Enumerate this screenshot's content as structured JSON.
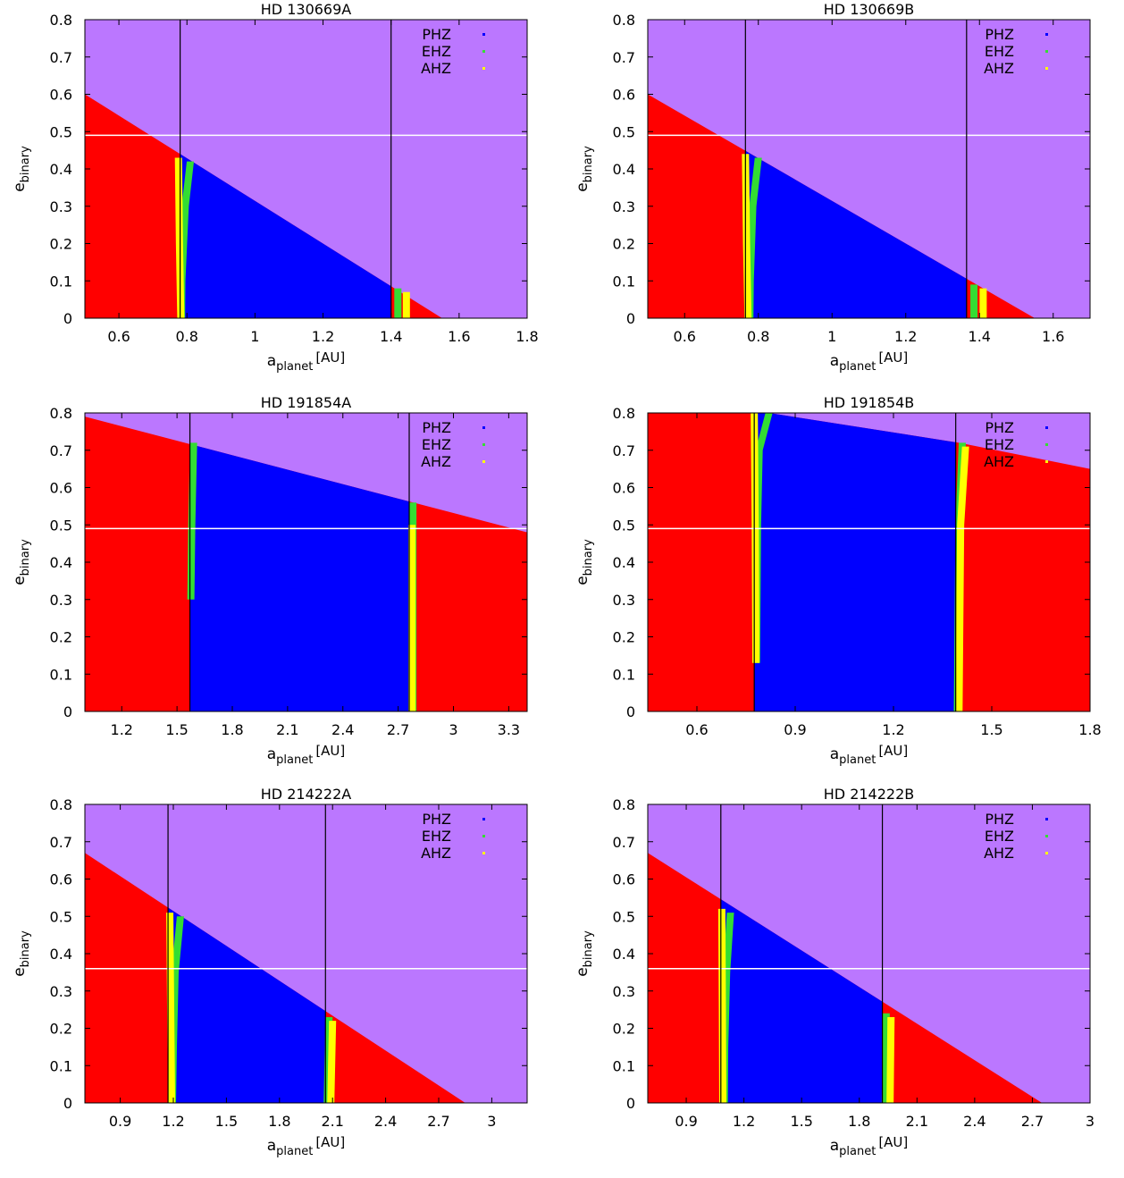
{
  "colors": {
    "background": "#bb77ff",
    "unstable": "#ff0000",
    "phz": "#0000ff",
    "ehz": "#33dd33",
    "ahz": "#ffff00",
    "white_line": "#ffffff",
    "black_line": "#000000"
  },
  "legend": [
    "PHZ",
    "EHZ",
    "AHZ"
  ],
  "chart_data": [
    {
      "type": "area",
      "title": "HD 130669A",
      "xlabel_main": "a",
      "xlabel_sub": "planet",
      "xlabel_unit": "[AU]",
      "ylabel_main": "e",
      "ylabel_sub": "binary",
      "xlim": [
        0.5,
        1.8
      ],
      "ylim": [
        0,
        0.8
      ],
      "xticks": [
        0.6,
        0.8,
        1,
        1.2,
        1.4,
        1.6,
        1.8
      ],
      "xtick_labels": [
        "0.6",
        "0.8",
        "1",
        "1.2",
        "1.4",
        "1.6",
        "1.8"
      ],
      "yticks": [
        0,
        0.1,
        0.2,
        0.3,
        0.4,
        0.5,
        0.6,
        0.7,
        0.8
      ],
      "ytick_labels": [
        "0",
        "0.1",
        "0.2",
        "0.3",
        "0.4",
        "0.5",
        "0.6",
        "0.7",
        "0.8"
      ],
      "boundary": [
        [
          0.5,
          0.6
        ],
        [
          1.55,
          0
        ]
      ],
      "hz_inner": 0.78,
      "hz_outer": 1.4,
      "white_line": 0.49,
      "inner_edge": {
        "ahz": [
          [
            0.775,
            0.43
          ],
          [
            0.778,
            0.2
          ],
          [
            0.782,
            0
          ]
        ],
        "ehz": [
          [
            0.81,
            0.42
          ],
          [
            0.795,
            0.3
          ],
          [
            0.785,
            0.1
          ],
          [
            0.784,
            0
          ]
        ]
      },
      "outer_edge": {
        "ehz": [
          [
            1.42,
            0.08
          ],
          [
            1.42,
            0
          ]
        ],
        "ahz": [
          [
            1.445,
            0.07
          ],
          [
            1.445,
            0
          ]
        ]
      },
      "legend_pos": "top-right"
    },
    {
      "type": "area",
      "title": "HD 130669B",
      "xlabel_main": "a",
      "xlabel_sub": "planet",
      "xlabel_unit": "[AU]",
      "ylabel_main": "e",
      "ylabel_sub": "binary",
      "xlim": [
        0.5,
        1.7
      ],
      "ylim": [
        0,
        0.8
      ],
      "xticks": [
        0.6,
        0.8,
        1,
        1.2,
        1.4,
        1.6
      ],
      "xtick_labels": [
        "0.6",
        "0.8",
        "1",
        "1.2",
        "1.4",
        "1.6"
      ],
      "yticks": [
        0,
        0.1,
        0.2,
        0.3,
        0.4,
        0.5,
        0.6,
        0.7,
        0.8
      ],
      "ytick_labels": [
        "0",
        "0.1",
        "0.2",
        "0.3",
        "0.4",
        "0.5",
        "0.6",
        "0.7",
        "0.8"
      ],
      "boundary": [
        [
          0.5,
          0.6
        ],
        [
          1.55,
          0
        ]
      ],
      "hz_inner": 0.765,
      "hz_outer": 1.365,
      "white_line": 0.49,
      "inner_edge": {
        "ahz": [
          [
            0.765,
            0.44
          ],
          [
            0.768,
            0.2
          ],
          [
            0.772,
            0
          ]
        ],
        "ehz": [
          [
            0.8,
            0.43
          ],
          [
            0.785,
            0.3
          ],
          [
            0.778,
            0.1
          ],
          [
            0.777,
            0
          ]
        ]
      },
      "outer_edge": {
        "ehz": [
          [
            1.385,
            0.09
          ],
          [
            1.385,
            0
          ]
        ],
        "ahz": [
          [
            1.41,
            0.08
          ],
          [
            1.41,
            0
          ]
        ]
      },
      "legend_pos": "top-right"
    },
    {
      "type": "area",
      "title": "HD 191854A",
      "xlabel_main": "a",
      "xlabel_sub": "planet",
      "xlabel_unit": "[AU]",
      "ylabel_main": "e",
      "ylabel_sub": "binary",
      "xlim": [
        1.0,
        3.4
      ],
      "ylim": [
        0,
        0.8
      ],
      "xticks": [
        1.2,
        1.5,
        1.8,
        2.1,
        2.4,
        2.7,
        3,
        3.3
      ],
      "xtick_labels": [
        "1.2",
        "1.5",
        "1.8",
        "2.1",
        "2.4",
        "2.7",
        "3",
        "3.3"
      ],
      "yticks": [
        0,
        0.1,
        0.2,
        0.3,
        0.4,
        0.5,
        0.6,
        0.7,
        0.8
      ],
      "ytick_labels": [
        "0",
        "0.1",
        "0.2",
        "0.3",
        "0.4",
        "0.5",
        "0.6",
        "0.7",
        "0.8"
      ],
      "boundary": [
        [
          1.0,
          0.79
        ],
        [
          3.4,
          0.48
        ]
      ],
      "hz_inner": 1.57,
      "hz_outer": 2.76,
      "white_line": 0.49,
      "inner_edge": {
        "ehz": [
          [
            1.59,
            0.72
          ],
          [
            1.58,
            0.5
          ],
          [
            1.575,
            0.3
          ]
        ]
      },
      "outer_edge": {
        "ehz": [
          [
            2.78,
            0.56
          ],
          [
            2.78,
            0.0
          ]
        ],
        "ahz": [
          [
            2.775,
            0.5
          ],
          [
            2.775,
            0.0
          ]
        ]
      },
      "legend_pos": "top-right"
    },
    {
      "type": "area",
      "title": "HD 191854B",
      "xlabel_main": "a",
      "xlabel_sub": "planet",
      "xlabel_unit": "[AU]",
      "ylabel_main": "e",
      "ylabel_sub": "binary",
      "xlim": [
        0.45,
        1.8
      ],
      "ylim": [
        0,
        0.8
      ],
      "xticks": [
        0.6,
        0.9,
        1.2,
        1.5,
        1.8
      ],
      "xtick_labels": [
        "0.6",
        "0.9",
        "1.2",
        "1.5",
        "1.8"
      ],
      "yticks": [
        0,
        0.1,
        0.2,
        0.3,
        0.4,
        0.5,
        0.6,
        0.7,
        0.8
      ],
      "ytick_labels": [
        "0",
        "0.1",
        "0.2",
        "0.3",
        "0.4",
        "0.5",
        "0.6",
        "0.7",
        "0.8"
      ],
      "boundary": [
        [
          0.45,
          0.8
        ],
        [
          0.82,
          0.8
        ],
        [
          1.4,
          0.72
        ],
        [
          1.8,
          0.65
        ]
      ],
      "region": "blue_between",
      "hz_inner": 0.775,
      "hz_outer": 1.39,
      "white_line": 0.49,
      "inner_edge": {
        "ehz": [
          [
            0.82,
            0.8
          ],
          [
            0.79,
            0.7
          ],
          [
            0.785,
            0.5
          ],
          [
            0.782,
            0.13
          ]
        ],
        "ahz": [
          [
            0.775,
            0.8
          ],
          [
            0.778,
            0.5
          ],
          [
            0.78,
            0.13
          ]
        ]
      },
      "outer_edge": {
        "ehz": [
          [
            1.41,
            0.72
          ],
          [
            1.4,
            0.5
          ],
          [
            1.395,
            0.0
          ]
        ],
        "ahz": [
          [
            1.42,
            0.71
          ],
          [
            1.405,
            0.5
          ],
          [
            1.4,
            0.0
          ]
        ]
      },
      "legend_pos": "top-right"
    },
    {
      "type": "area",
      "title": "HD 214222A",
      "xlabel_main": "a",
      "xlabel_sub": "planet",
      "xlabel_unit": "[AU]",
      "ylabel_main": "e",
      "ylabel_sub": "binary",
      "xlim": [
        0.7,
        3.2
      ],
      "ylim": [
        0,
        0.8
      ],
      "xticks": [
        0.9,
        1.2,
        1.5,
        1.8,
        2.1,
        2.4,
        2.7,
        3
      ],
      "xtick_labels": [
        "0.9",
        "1.2",
        "1.5",
        "1.8",
        "2.1",
        "2.4",
        "2.7",
        "3"
      ],
      "yticks": [
        0,
        0.1,
        0.2,
        0.3,
        0.4,
        0.5,
        0.6,
        0.7,
        0.8
      ],
      "ytick_labels": [
        "0",
        "0.1",
        "0.2",
        "0.3",
        "0.4",
        "0.5",
        "0.6",
        "0.7",
        "0.8"
      ],
      "boundary": [
        [
          0.7,
          0.67
        ],
        [
          2.85,
          0
        ]
      ],
      "hz_inner": 1.17,
      "hz_outer": 2.06,
      "white_line": 0.36,
      "inner_edge": {
        "ahz": [
          [
            1.18,
            0.51
          ],
          [
            1.185,
            0.25
          ],
          [
            1.19,
            0
          ]
        ],
        "ehz": [
          [
            1.24,
            0.5
          ],
          [
            1.21,
            0.35
          ],
          [
            1.2,
            0.15
          ],
          [
            1.195,
            0
          ]
        ]
      },
      "outer_edge": {
        "ehz": [
          [
            2.08,
            0.23
          ],
          [
            2.07,
            0
          ]
        ],
        "ahz": [
          [
            2.1,
            0.22
          ],
          [
            2.09,
            0
          ]
        ]
      },
      "legend_pos": "top-right"
    },
    {
      "type": "area",
      "title": "HD 214222B",
      "xlabel_main": "a",
      "xlabel_sub": "planet",
      "xlabel_unit": "[AU]",
      "ylabel_main": "e",
      "ylabel_sub": "binary",
      "xlim": [
        0.7,
        3.0
      ],
      "ylim": [
        0,
        0.8
      ],
      "xticks": [
        0.9,
        1.2,
        1.5,
        1.8,
        2.1,
        2.4,
        2.7,
        3
      ],
      "xtick_labels": [
        "0.9",
        "1.2",
        "1.5",
        "1.8",
        "2.1",
        "2.4",
        "2.7",
        "3"
      ],
      "yticks": [
        0,
        0.1,
        0.2,
        0.3,
        0.4,
        0.5,
        0.6,
        0.7,
        0.8
      ],
      "ytick_labels": [
        "0",
        "0.1",
        "0.2",
        "0.3",
        "0.4",
        "0.5",
        "0.6",
        "0.7",
        "0.8"
      ],
      "boundary": [
        [
          0.7,
          0.67
        ],
        [
          2.75,
          0
        ]
      ],
      "hz_inner": 1.08,
      "hz_outer": 1.92,
      "white_line": 0.36,
      "inner_edge": {
        "ahz": [
          [
            1.085,
            0.52
          ],
          [
            1.088,
            0.25
          ],
          [
            1.09,
            0
          ]
        ],
        "ehz": [
          [
            1.13,
            0.51
          ],
          [
            1.11,
            0.35
          ],
          [
            1.1,
            0.15
          ],
          [
            1.098,
            0
          ]
        ]
      },
      "outer_edge": {
        "ehz": [
          [
            1.94,
            0.24
          ],
          [
            1.935,
            0
          ]
        ],
        "ahz": [
          [
            1.965,
            0.23
          ],
          [
            1.96,
            0
          ]
        ]
      },
      "legend_pos": "top-right"
    }
  ]
}
